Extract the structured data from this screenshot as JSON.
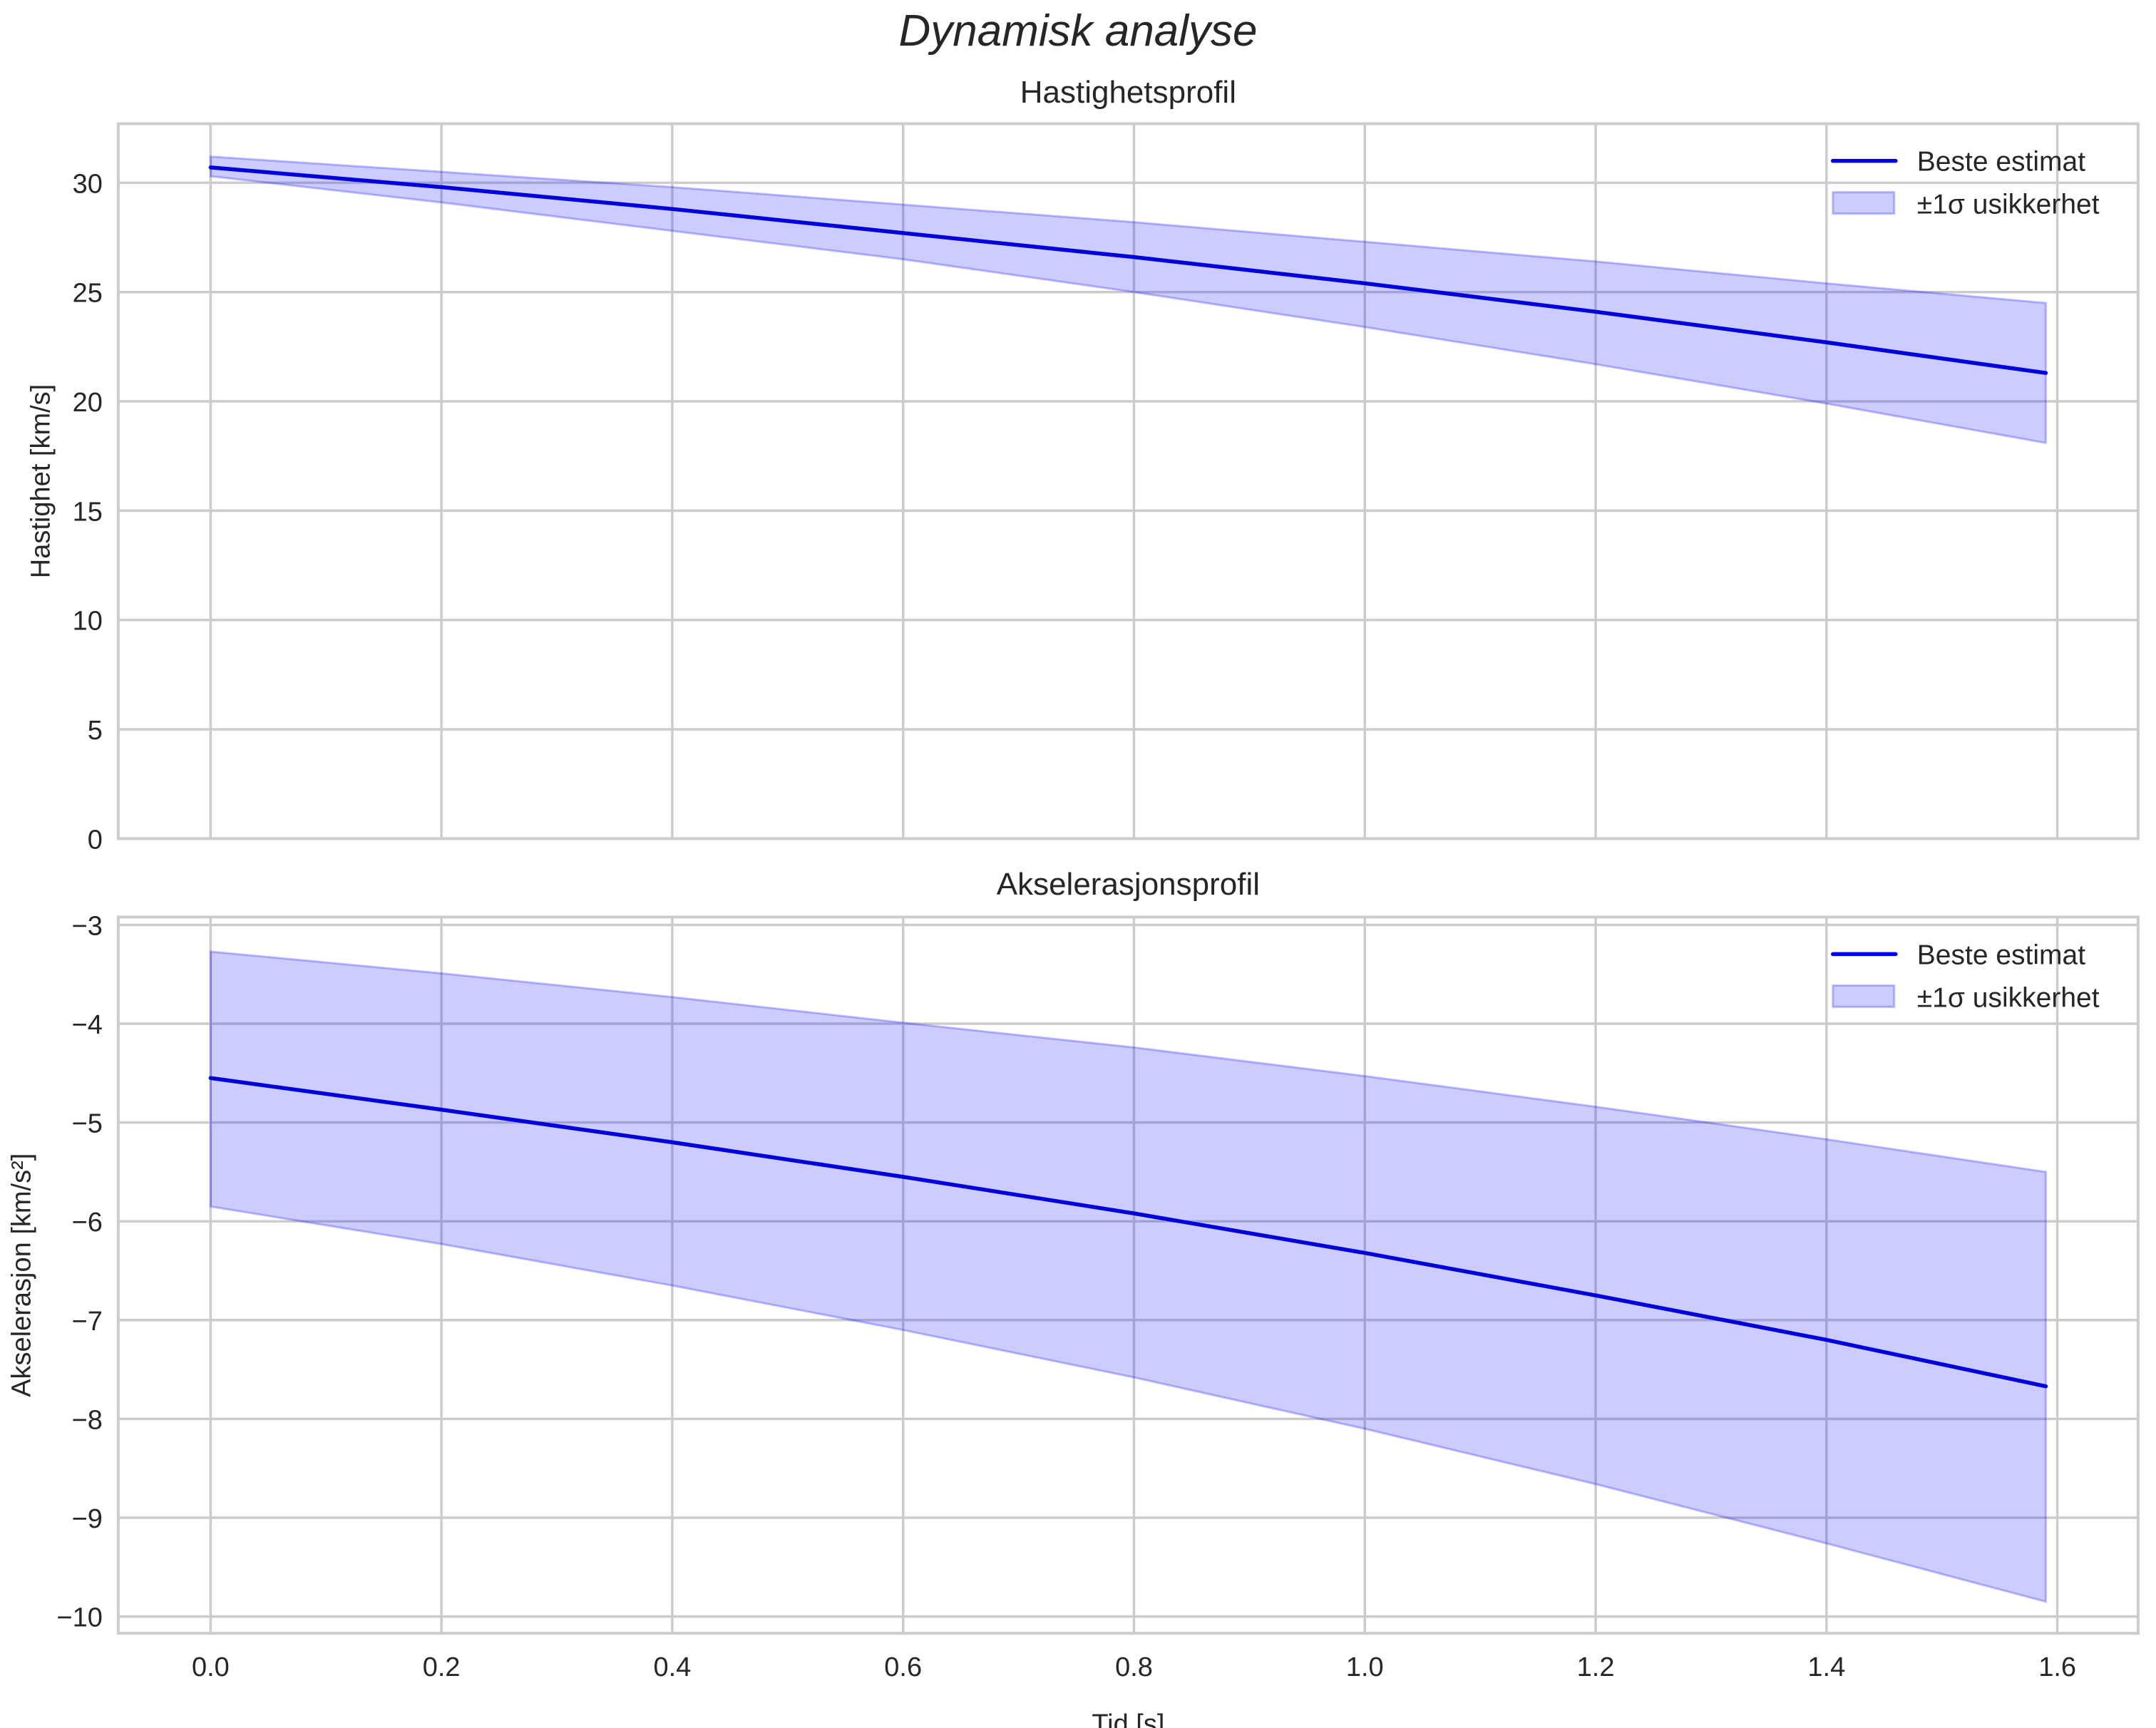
{
  "figure": {
    "suptitle": "Dynamisk analyse",
    "colors": {
      "line": "#0000dd",
      "band_fill": "#0000ff",
      "band_alpha": 0.2,
      "grid": "#cccccc",
      "text": "#262626"
    }
  },
  "chart_data": [
    {
      "type": "line",
      "title": "Hastighetsprofil",
      "xlabel": "",
      "ylabel": "Hastighet [km/s]",
      "xlim": [
        -0.08,
        1.67
      ],
      "ylim": [
        0,
        32.7
      ],
      "xticks": [
        0.0,
        0.2,
        0.4,
        0.6,
        0.8,
        1.0,
        1.2,
        1.4,
        1.6
      ],
      "xtick_labels_visible": false,
      "yticks": [
        0,
        5,
        10,
        15,
        20,
        25,
        30
      ],
      "grid": true,
      "legend": {
        "position": "upper right",
        "entries": [
          "Beste estimat",
          "±1σ usikkerhet"
        ]
      },
      "x": [
        0.0,
        0.2,
        0.4,
        0.6,
        0.8,
        1.0,
        1.2,
        1.4,
        1.59
      ],
      "series": [
        {
          "name": "Beste estimat",
          "kind": "line",
          "values": [
            30.7,
            29.8,
            28.8,
            27.7,
            26.6,
            25.4,
            24.1,
            22.7,
            21.3
          ]
        },
        {
          "name": "±1σ usikkerhet",
          "kind": "band",
          "lower": [
            30.3,
            29.1,
            27.8,
            26.5,
            25.0,
            23.4,
            21.7,
            19.9,
            18.1
          ],
          "upper": [
            31.2,
            30.5,
            29.8,
            29.0,
            28.2,
            27.3,
            26.4,
            25.4,
            24.5
          ]
        }
      ]
    },
    {
      "type": "line",
      "title": "Akselerasjonsprofil",
      "xlabel": "Tid [s]",
      "ylabel": "Akselerasjon [km/s²]",
      "xlim": [
        -0.08,
        1.67
      ],
      "ylim": [
        -10.17,
        -2.92
      ],
      "xticks": [
        0.0,
        0.2,
        0.4,
        0.6,
        0.8,
        1.0,
        1.2,
        1.4,
        1.6
      ],
      "xtick_labels": [
        "0.0",
        "0.2",
        "0.4",
        "0.6",
        "0.8",
        "1.0",
        "1.2",
        "1.4",
        "1.6"
      ],
      "yticks": [
        -3,
        -4,
        -5,
        -6,
        -7,
        -8,
        -9,
        -10
      ],
      "ytick_labels": [
        "−3",
        "−4",
        "−5",
        "−6",
        "−7",
        "−8",
        "−9",
        "−10"
      ],
      "grid": true,
      "legend": {
        "position": "upper right",
        "entries": [
          "Beste estimat",
          "±1σ usikkerhet"
        ]
      },
      "x": [
        0.0,
        0.2,
        0.4,
        0.6,
        0.8,
        1.0,
        1.2,
        1.4,
        1.59
      ],
      "series": [
        {
          "name": "Beste estimat",
          "kind": "line",
          "values": [
            -4.55,
            -4.87,
            -5.2,
            -5.55,
            -5.92,
            -6.32,
            -6.75,
            -7.2,
            -7.67
          ]
        },
        {
          "name": "±1σ usikkerhet",
          "kind": "band",
          "lower": [
            -5.85,
            -6.23,
            -6.65,
            -7.1,
            -7.58,
            -8.1,
            -8.66,
            -9.26,
            -9.85
          ],
          "upper": [
            -3.27,
            -3.49,
            -3.73,
            -3.99,
            -4.24,
            -4.53,
            -4.84,
            -5.17,
            -5.5
          ]
        }
      ]
    }
  ]
}
